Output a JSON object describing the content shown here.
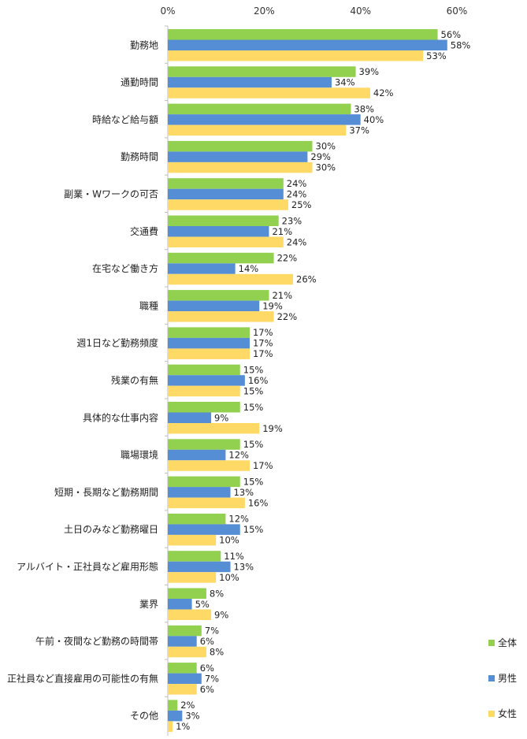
{
  "chart_data": {
    "type": "bar",
    "orientation": "horizontal",
    "xlim": [
      0,
      60
    ],
    "x_ticks": [
      "0%",
      "20%",
      "40%",
      "60%"
    ],
    "x_tick_values": [
      0,
      20,
      40,
      60
    ],
    "grid": false,
    "legend_position": "bottom-right",
    "categories": [
      "勤務地",
      "通勤時間",
      "時給など給与額",
      "勤務時間",
      "副業・Wワークの可否",
      "交通費",
      "在宅など働き方",
      "職種",
      "週1日など勤務頻度",
      "残業の有無",
      "具体的な仕事内容",
      "職場環境",
      "短期・長期など勤務期間",
      "土日のみなど勤務曜日",
      "アルバイト・正社員など雇用形態",
      "業界",
      "午前・夜間など勤務の時間帯",
      "正社員など直接雇用の可能性の有無",
      "その他"
    ],
    "series": [
      {
        "name": "全体",
        "color": "#92d050",
        "values": [
          56,
          39,
          38,
          30,
          24,
          23,
          22,
          21,
          17,
          15,
          15,
          15,
          15,
          12,
          11,
          8,
          7,
          6,
          2
        ]
      },
      {
        "name": "男性",
        "color": "#558ed5",
        "values": [
          58,
          34,
          40,
          29,
          24,
          21,
          14,
          19,
          17,
          16,
          9,
          12,
          13,
          15,
          13,
          5,
          6,
          7,
          3
        ]
      },
      {
        "name": "女性",
        "color": "#ffd966",
        "values": [
          53,
          42,
          37,
          30,
          25,
          24,
          26,
          22,
          17,
          15,
          19,
          17,
          16,
          10,
          10,
          9,
          8,
          6,
          1
        ]
      }
    ],
    "value_suffix": "%"
  }
}
